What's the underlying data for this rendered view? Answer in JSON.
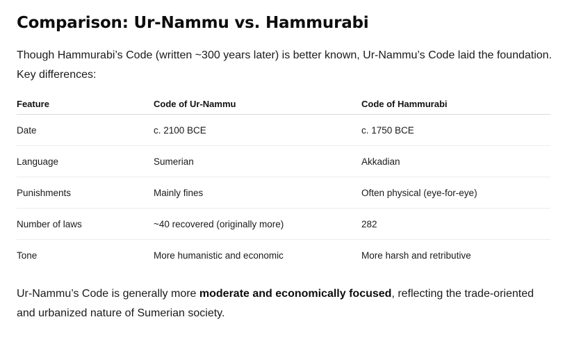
{
  "title": "Comparison: Ur-Nammu vs. Hammurabi",
  "intro": "Though Hammurabi’s Code (written ~300 years later) is better known, Ur-Nammu’s Code laid the foundation. Key differences:",
  "table": {
    "headers": [
      "Feature",
      "Code of Ur-Nammu",
      "Code of Hammurabi"
    ],
    "rows": [
      [
        "Date",
        "c. 2100 BCE",
        "c. 1750 BCE"
      ],
      [
        "Language",
        "Sumerian",
        "Akkadian"
      ],
      [
        "Punishments",
        "Mainly fines",
        "Often physical (eye-for-eye)"
      ],
      [
        "Number of laws",
        "~40 recovered (originally more)",
        "282"
      ],
      [
        "Tone",
        "More humanistic and economic",
        "More harsh and retributive"
      ]
    ]
  },
  "summary": {
    "before": "Ur-Nammu’s Code is generally more ",
    "bold": "moderate and economically focused",
    "after": ", reflecting the trade-oriented and urbanized nature of Sumerian society."
  }
}
